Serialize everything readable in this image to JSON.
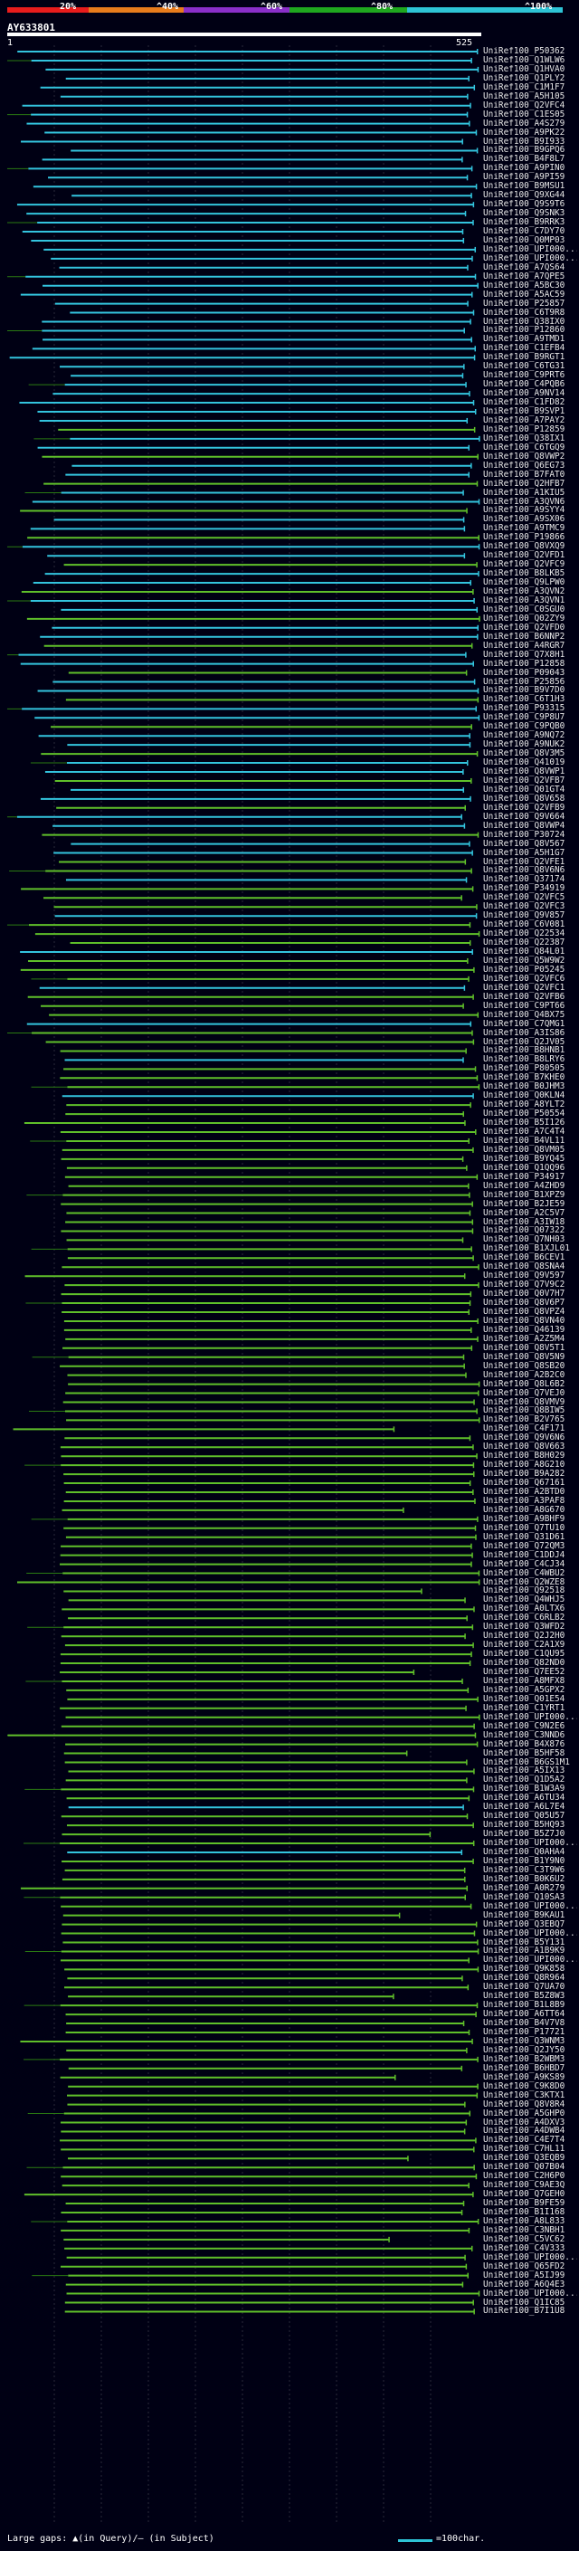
{
  "scale": {
    "colors": [
      "#e81c1c",
      "#e87c1c",
      "#8a2fc9",
      "#1fa71f",
      "#2ec4d6"
    ],
    "labels": [
      "20%",
      "^40%",
      "^60%",
      "^80%",
      "^100%"
    ]
  },
  "query": {
    "name": "AY633801",
    "start": "1",
    "end": "525"
  },
  "colors": {
    "green": "#5fbf2a",
    "cyan": "#33c4de",
    "dark_green": "#2a7a12"
  },
  "hits": [
    "UniRef100_P50362",
    "UniRef100_Q1WLW6",
    "UniRef100_Q1HVA0",
    "UniRef100_Q1PLY2",
    "UniRef100_C1M1F7",
    "UniRef100_A5H105",
    "UniRef100_Q2VFC4",
    "UniRef100_C1ES05",
    "UniRef100_A4S279",
    "UniRef100_A9PK22",
    "UniRef100_B9I933",
    "UniRef100_B9GPQ6",
    "UniRef100_B4F8L7",
    "UniRef100_A9PIN0",
    "UniRef100_A9PI59",
    "UniRef100_B9MSU1",
    "UniRef100_Q9XG44",
    "UniRef100_Q9S9T6",
    "UniRef100_Q9SNK3",
    "UniRef100_B9RRK3",
    "UniRef100_C7DY70",
    "UniRef100_Q0MP03",
    "UniRef100_UPI000...",
    "UniRef100_UPI000...",
    "UniRef100_A7QS64",
    "UniRef100_A7QPE5",
    "UniRef100_A5BC30",
    "UniRef100_A5AC59",
    "UniRef100_P25857",
    "UniRef100_C6T9R8",
    "UniRef100_Q38IX0",
    "UniRef100_P12860",
    "UniRef100_A9TMD1",
    "UniRef100_C1EFB4",
    "UniRef100_B9RGT1",
    "UniRef100_C6TG31",
    "UniRef100_C9PRT6",
    "UniRef100_C4PQB6",
    "UniRef100_A9NV14",
    "UniRef100_C1FD82",
    "UniRef100_B9SVP1",
    "UniRef100_A7PAY2",
    "UniRef100_P12859",
    "UniRef100_Q38IX1",
    "UniRef100_C6TGQ9",
    "UniRef100_Q8VWP2",
    "UniRef100_Q6EG73",
    "UniRef100_B7FAT0",
    "UniRef100_Q2HFB7",
    "UniRef100_A1KIU5",
    "UniRef100_A3QVN6",
    "UniRef100_A9SYY4",
    "UniRef100_A9SX06",
    "UniRef100_A9TMC9",
    "UniRef100_P19866",
    "UniRef100_Q8VXQ9",
    "UniRef100_Q2VFD1",
    "UniRef100_Q2VFC9",
    "UniRef100_B8LKB5",
    "UniRef100_Q9LPW0",
    "UniRef100_A3QVN2",
    "UniRef100_A3QVN1",
    "UniRef100_C0SGU0",
    "UniRef100_Q02ZY9",
    "UniRef100_Q2VFD0",
    "UniRef100_B6NNP2",
    "UniRef100_A4RGR7",
    "UniRef100_Q7X8H1",
    "UniRef100_P12858",
    "UniRef100_P09043",
    "UniRef100_P25856",
    "UniRef100_B9V7D0",
    "UniRef100_C6T1H3",
    "UniRef100_P93315",
    "UniRef100_C9P8U7",
    "UniRef100_C9PQB0",
    "UniRef100_A9NQ72",
    "UniRef100_A9NUK2",
    "UniRef100_Q8V3M5",
    "UniRef100_Q41019",
    "UniRef100_Q8VWP1",
    "UniRef100_Q2VFB7",
    "UniRef100_Q01GT4",
    "UniRef100_Q8V658",
    "UniRef100_Q2VFB9",
    "UniRef100_Q9V664",
    "UniRef100_Q8VWP4",
    "UniRef100_P30724",
    "UniRef100_Q8V567",
    "UniRef100_A5H1G7",
    "UniRef100_Q2VFE1",
    "UniRef100_Q8V6N6",
    "UniRef100_Q37174",
    "UniRef100_P34919",
    "UniRef100_Q2VFC5",
    "UniRef100_Q2VFC3",
    "UniRef100_Q9V857",
    "UniRef100_C6V081",
    "UniRef100_Q22534",
    "UniRef100_Q22387",
    "UniRef100_Q84L01",
    "UniRef100_Q5W9W2",
    "UniRef100_P05245",
    "UniRef100_Q2VFC6",
    "UniRef100_Q2VFC1",
    "UniRef100_Q2VFB6",
    "UniRef100_C9PT66",
    "UniRef100_Q4BX75",
    "UniRef100_C7QMG1",
    "UniRef100_A3IS86",
    "UniRef100_Q2JV05",
    "UniRef100_B8HNB1",
    "UniRef100_B8LRY6",
    "UniRef100_P80505",
    "UniRef100_B7KHE0",
    "UniRef100_B0JHM3",
    "UniRef100_Q0KLN4",
    "UniRef100_A8YLT2",
    "UniRef100_P50554",
    "UniRef100_B5I126",
    "UniRef100_A7C4T4",
    "UniRef100_B4VL11",
    "UniRef100_Q8VM05",
    "UniRef100_B9YQ45",
    "UniRef100_Q1QQ96",
    "UniRef100_P34917",
    "UniRef100_A4ZHD9",
    "UniRef100_B1XPZ9",
    "UniRef100_B2JE59",
    "UniRef100_A2C5V7",
    "UniRef100_A3IW18",
    "UniRef100_Q07322",
    "UniRef100_Q7NH03",
    "UniRef100_B1XJL01",
    "UniRef100_B6CEV1",
    "UniRef100_Q8SNA4",
    "UniRef100_Q9V597",
    "UniRef100_Q7V9C2",
    "UniRef100_Q0V7H7",
    "UniRef100_Q8V6P7",
    "UniRef100_Q8VPZ4",
    "UniRef100_Q8VN40",
    "UniRef100_Q46139",
    "UniRef100_A2Z5M4",
    "UniRef100_Q8V5T1",
    "UniRef100_Q8V5N9",
    "UniRef100_Q8SB20",
    "UniRef100_A2B2C0",
    "UniRef100_Q8L6B2",
    "UniRef100_Q7VEJ0",
    "UniRef100_Q8VMV9",
    "UniRef100_Q8BIW5",
    "UniRef100_B2V765",
    "UniRef100_C4F171",
    "UniRef100_Q9V6N6",
    "UniRef100_Q8V663",
    "UniRef100_B8H029",
    "UniRef100_A8G210",
    "UniRef100_B9A282",
    "UniRef100_Q67161",
    "UniRef100_A2BTD0",
    "UniRef100_A3PAF8",
    "UniRef100_A8G670",
    "UniRef100_A9BHF9",
    "UniRef100_Q7TU10",
    "UniRef100_Q31D61",
    "UniRef100_Q72QM3",
    "UniRef100_C1DDJ4",
    "UniRef100_C4CJ34",
    "UniRef100_C4WBU2",
    "UniRef100_Q2WZE8",
    "UniRef100_Q92518",
    "UniRef100_Q4WHJ5",
    "UniRef100_A0LTX6",
    "UniRef100_C6RLB2",
    "UniRef100_Q3WFD2",
    "UniRef100_Q2J2H0",
    "UniRef100_C2A1X9",
    "UniRef100_C1QU95",
    "UniRef100_Q82ND0",
    "UniRef100_Q7EE52",
    "UniRef100_A8MFX8",
    "UniRef100_A5GPX2",
    "UniRef100_Q01E54",
    "UniRef100_C1YRT1",
    "UniRef100_UPI000...",
    "UniRef100_C9N2E6",
    "UniRef100_C3NND6",
    "UniRef100_B4X876",
    "UniRef100_B5HF58",
    "UniRef100_B6GS1M1",
    "UniRef100_A5IX13",
    "UniRef100_Q1D5A2",
    "UniRef100_B1W3A9",
    "UniRef100_A6TU34",
    "UniRef100_A6L7E4",
    "UniRef100_Q05U57",
    "UniRef100_B5HQ93",
    "UniRef100_B5Z7J0",
    "UniRef100_UPI000...",
    "UniRef100_Q0AHA4",
    "UniRef100_B1Y9N0",
    "UniRef100_C3T9W6",
    "UniRef100_B0K6U2",
    "UniRef100_A0R279",
    "UniRef100_Q10SA3",
    "UniRef100_UPI000...",
    "UniRef100_B9KAU1",
    "UniRef100_Q3EBQ7",
    "UniRef100_UPI000...",
    "UniRef100_B5Y131",
    "UniRef100_A1B9K9",
    "UniRef100_UPI000...",
    "UniRef100_Q9K858",
    "UniRef100_Q8R964",
    "UniRef100_Q7UA70",
    "UniRef100_B5Z8W3",
    "UniRef100_B1L8B9",
    "UniRef100_A6TT64",
    "UniRef100_B4V7V8",
    "UniRef100_P17721",
    "UniRef100_Q3WNM3",
    "UniRef100_Q2JY50",
    "UniRef100_B2WBM3",
    "UniRef100_B6HBD7",
    "UniRef100_A9KS89",
    "UniRef100_C9K8D0",
    "UniRef100_C3KTX1",
    "UniRef100_Q8V8R4",
    "UniRef100_A5GHP0",
    "UniRef100_A4DXV3",
    "UniRef100_A4DWB4",
    "UniRef100_C4E7T4",
    "UniRef100_C7HL11",
    "UniRef100_Q3EQB9",
    "UniRef100_Q07B04",
    "UniRef100_C2H6P0",
    "UniRef100_C9AE3Q",
    "UniRef100_Q7GEH0",
    "UniRef100_B9FE59",
    "UniRef100_B1I168",
    "UniRef100_A8L833",
    "UniRef100_C3NBH1",
    "UniRef100_C5VC62",
    "UniRef100_C4V333",
    "UniRef100_UPI000...",
    "UniRef100_Q65FD2",
    "UniRef100_A5IJ99",
    "UniRef100_A6Q4E3",
    "UniRef100_UPI000...",
    "UniRef100_Q1IC85",
    "UniRef100_B7I1U8"
  ],
  "footer": {
    "large_gaps": "Large gaps: ▲(in Query)/– (in Subject)",
    "legend": "=100char."
  }
}
